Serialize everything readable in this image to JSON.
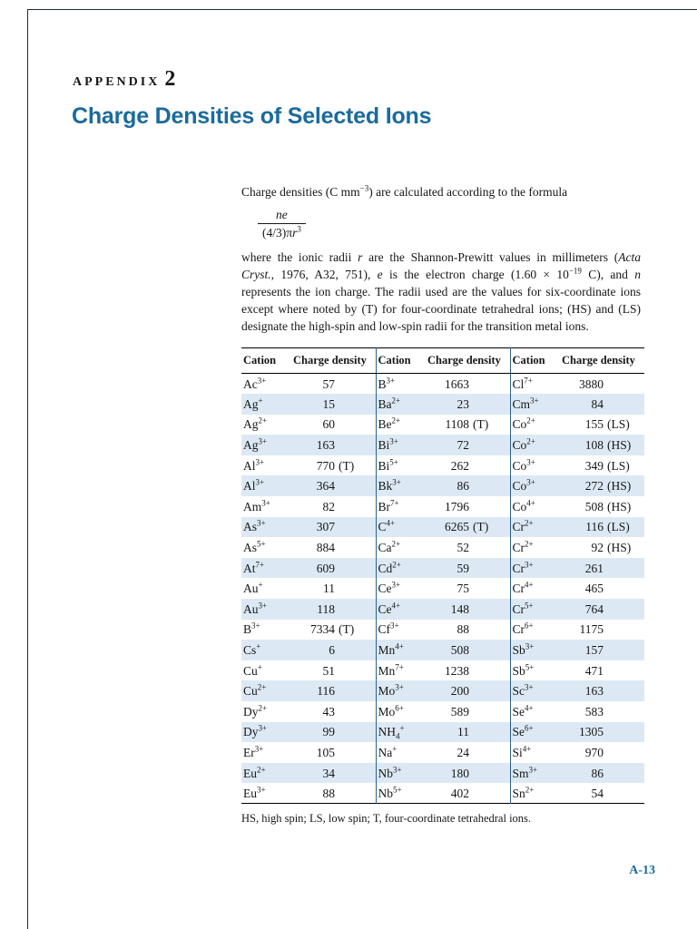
{
  "header": {
    "appendix_label": "APPENDIX",
    "appendix_number": "2",
    "title": "Charge Densities of Selected Ions"
  },
  "colors": {
    "accent_blue": "#1a6b9c",
    "row_stripe": "#dce9f4",
    "divider_blue": "#2e5f8a"
  },
  "intro": {
    "line": [
      {
        "t": "Charge densities (C mm"
      },
      {
        "t": "−3",
        "s": "sup"
      },
      {
        "t": ") are calculated according to the formula"
      }
    ],
    "formula": {
      "numerator": [
        {
          "t": "ne",
          "s": "i"
        }
      ],
      "denominator": [
        {
          "t": "(4/3)π"
        },
        {
          "t": "r",
          "s": "i"
        },
        {
          "t": "3",
          "s": "sup"
        }
      ]
    },
    "body": [
      {
        "t": "where the ionic radii "
      },
      {
        "t": "r",
        "s": "i"
      },
      {
        "t": " are the Shannon-Prewitt values in millimeters ("
      },
      {
        "t": "Acta Cryst.,",
        "s": "i"
      },
      {
        "t": " 1976, A32, 751), "
      },
      {
        "t": "e",
        "s": "i"
      },
      {
        "t": " is the electron charge (1.60 × 10"
      },
      {
        "t": "−19",
        "s": "sup"
      },
      {
        "t": " C), and "
      },
      {
        "t": "n",
        "s": "i"
      },
      {
        "t": " represents the ion charge. The radii used are the values for six-coordinate ions except where noted by (T) for four-coordinate tetrahedral ions; (HS) and (LS) designate the high-spin and low-spin radii for the transition metal ions."
      }
    ]
  },
  "table": {
    "headers": [
      "Cation",
      "Charge density",
      "Cation",
      "Charge density",
      "Cation",
      "Charge density"
    ],
    "rows": [
      [
        {
          "b": "Ac",
          "sup": "3+"
        },
        {
          "n": "57"
        },
        {
          "b": "B",
          "sup": "3+"
        },
        {
          "n": "1663"
        },
        {
          "b": "Cl",
          "sup": "7+"
        },
        {
          "n": "3880"
        }
      ],
      [
        {
          "b": "Ag",
          "sup": "+"
        },
        {
          "n": "15"
        },
        {
          "b": "Ba",
          "sup": "2+"
        },
        {
          "n": "23"
        },
        {
          "b": "Cm",
          "sup": "3+"
        },
        {
          "n": "84"
        }
      ],
      [
        {
          "b": "Ag",
          "sup": "2+"
        },
        {
          "n": "60"
        },
        {
          "b": "Be",
          "sup": "2+"
        },
        {
          "n": "1108",
          "t": "(T)"
        },
        {
          "b": "Co",
          "sup": "2+"
        },
        {
          "n": "155",
          "t": "(LS)"
        }
      ],
      [
        {
          "b": "Ag",
          "sup": "3+"
        },
        {
          "n": "163"
        },
        {
          "b": "Bi",
          "sup": "3+"
        },
        {
          "n": "72"
        },
        {
          "b": "Co",
          "sup": "2+"
        },
        {
          "n": "108",
          "t": "(HS)"
        }
      ],
      [
        {
          "b": "Al",
          "sup": "3+"
        },
        {
          "n": "770",
          "t": "(T)"
        },
        {
          "b": "Bi",
          "sup": "5+"
        },
        {
          "n": "262"
        },
        {
          "b": "Co",
          "sup": "3+"
        },
        {
          "n": "349",
          "t": "(LS)"
        }
      ],
      [
        {
          "b": "Al",
          "sup": "3+"
        },
        {
          "n": "364"
        },
        {
          "b": "Bk",
          "sup": "3+"
        },
        {
          "n": "86"
        },
        {
          "b": "Co",
          "sup": "3+"
        },
        {
          "n": "272",
          "t": "(HS)"
        }
      ],
      [
        {
          "b": "Am",
          "sup": "3+"
        },
        {
          "n": "82"
        },
        {
          "b": "Br",
          "sup": "7+"
        },
        {
          "n": "1796"
        },
        {
          "b": "Co",
          "sup": "4+"
        },
        {
          "n": "508",
          "t": "(HS)"
        }
      ],
      [
        {
          "b": "As",
          "sup": "3+"
        },
        {
          "n": "307"
        },
        {
          "b": "C",
          "sup": "4+"
        },
        {
          "n": "6265",
          "t": "(T)"
        },
        {
          "b": "Cr",
          "sup": "2+"
        },
        {
          "n": "116",
          "t": "(LS)"
        }
      ],
      [
        {
          "b": "As",
          "sup": "5+"
        },
        {
          "n": "884"
        },
        {
          "b": "Ca",
          "sup": "2+"
        },
        {
          "n": "52"
        },
        {
          "b": "Cr",
          "sup": "2+"
        },
        {
          "n": "92",
          "t": "(HS)"
        }
      ],
      [
        {
          "b": "At",
          "sup": "7+"
        },
        {
          "n": "609"
        },
        {
          "b": "Cd",
          "sup": "2+"
        },
        {
          "n": "59"
        },
        {
          "b": "Cr",
          "sup": "3+"
        },
        {
          "n": "261"
        }
      ],
      [
        {
          "b": "Au",
          "sup": "+"
        },
        {
          "n": "11"
        },
        {
          "b": "Ce",
          "sup": "3+"
        },
        {
          "n": "75"
        },
        {
          "b": "Cr",
          "sup": "4+"
        },
        {
          "n": "465"
        }
      ],
      [
        {
          "b": "Au",
          "sup": "3+"
        },
        {
          "n": "118"
        },
        {
          "b": "Ce",
          "sup": "4+"
        },
        {
          "n": "148"
        },
        {
          "b": "Cr",
          "sup": "5+"
        },
        {
          "n": "764"
        }
      ],
      [
        {
          "b": "B",
          "sup": "3+"
        },
        {
          "n": "7334",
          "t": "(T)"
        },
        {
          "b": "Cf",
          "sup": "3+"
        },
        {
          "n": "88"
        },
        {
          "b": "Cr",
          "sup": "6+"
        },
        {
          "n": "1175"
        }
      ],
      [
        {
          "b": "Cs",
          "sup": "+"
        },
        {
          "n": "6"
        },
        {
          "b": "Mn",
          "sup": "4+"
        },
        {
          "n": "508"
        },
        {
          "b": "Sb",
          "sup": "3+"
        },
        {
          "n": "157"
        }
      ],
      [
        {
          "b": "Cu",
          "sup": "+"
        },
        {
          "n": "51"
        },
        {
          "b": "Mn",
          "sup": "7+"
        },
        {
          "n": "1238"
        },
        {
          "b": "Sb",
          "sup": "5+"
        },
        {
          "n": "471"
        }
      ],
      [
        {
          "b": "Cu",
          "sup": "2+"
        },
        {
          "n": "116"
        },
        {
          "b": "Mo",
          "sup": "3+"
        },
        {
          "n": "200"
        },
        {
          "b": "Sc",
          "sup": "3+"
        },
        {
          "n": "163"
        }
      ],
      [
        {
          "b": "Dy",
          "sup": "2+"
        },
        {
          "n": "43"
        },
        {
          "b": "Mo",
          "sup": "6+"
        },
        {
          "n": "589"
        },
        {
          "b": "Se",
          "sup": "4+"
        },
        {
          "n": "583"
        }
      ],
      [
        {
          "b": "Dy",
          "sup": "3+"
        },
        {
          "n": "99"
        },
        {
          "b": "NH",
          "sub": "4",
          "sup": "+"
        },
        {
          "n": "11"
        },
        {
          "b": "Se",
          "sup": "6+"
        },
        {
          "n": "1305"
        }
      ],
      [
        {
          "b": "Er",
          "sup": "3+"
        },
        {
          "n": "105"
        },
        {
          "b": "Na",
          "sup": "+"
        },
        {
          "n": "24"
        },
        {
          "b": "Si",
          "sup": "4+"
        },
        {
          "n": "970"
        }
      ],
      [
        {
          "b": "Eu",
          "sup": "2+"
        },
        {
          "n": "34"
        },
        {
          "b": "Nb",
          "sup": "3+"
        },
        {
          "n": "180"
        },
        {
          "b": "Sm",
          "sup": "3+"
        },
        {
          "n": "86"
        }
      ],
      [
        {
          "b": "Eu",
          "sup": "3+"
        },
        {
          "n": "88"
        },
        {
          "b": "Nb",
          "sup": "5+"
        },
        {
          "n": "402"
        },
        {
          "b": "Sn",
          "sup": "2+"
        },
        {
          "n": "54"
        }
      ]
    ],
    "footnote": "HS, high spin; LS, low spin; T, four-coordinate tetrahedral ions."
  },
  "footer": {
    "page_number": "A-13"
  }
}
